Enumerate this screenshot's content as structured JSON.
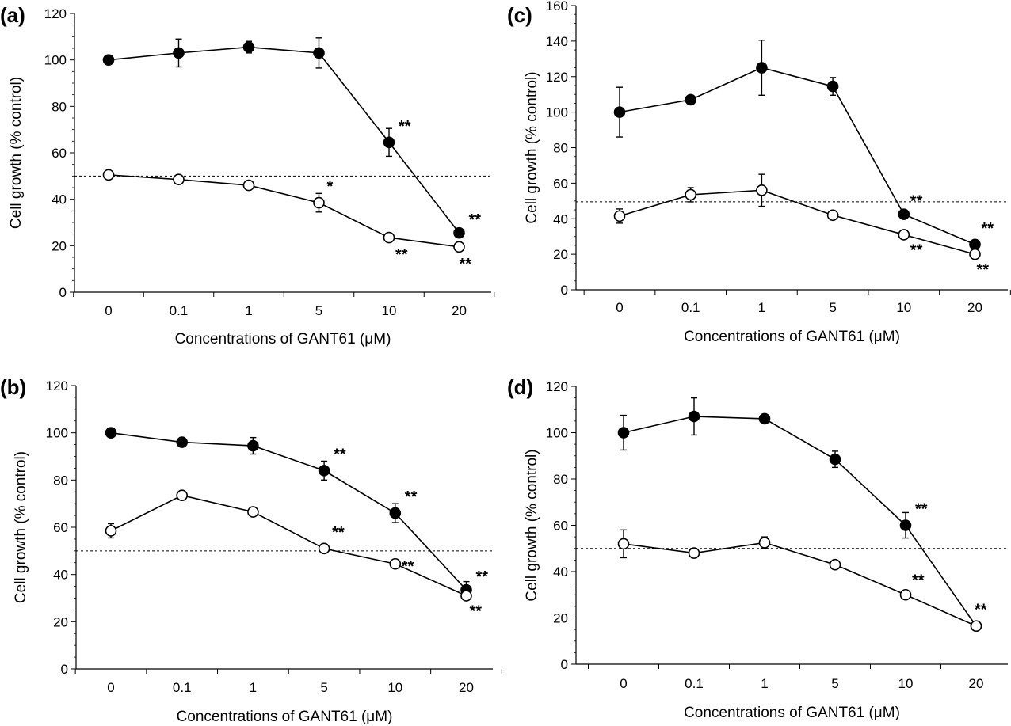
{
  "chart_data": [
    {
      "type": "line",
      "panel_label": "(a)",
      "categories": [
        "0",
        "0.1",
        "1",
        "5",
        "10",
        "20"
      ],
      "xlabel": "Concentrations of GANT61 (μM)",
      "ylabel": "Cell growth (% control)",
      "ylim": [
        0,
        120
      ],
      "yticks": [
        "0",
        "20",
        "40",
        "60",
        "80",
        "100",
        "120"
      ],
      "reference_line": 50,
      "series": [
        {
          "marker": "filled",
          "values": [
            100,
            103,
            105.5,
            103,
            64.5,
            25.5
          ],
          "errors": [
            0,
            6,
            2.5,
            6.5,
            6,
            0
          ],
          "sig": [
            "",
            "",
            "",
            "",
            "**",
            "**"
          ]
        },
        {
          "marker": "open",
          "values": [
            50.5,
            48.5,
            46,
            38.5,
            23.5,
            19.5
          ],
          "errors": [
            0,
            0,
            0,
            4,
            0,
            0
          ],
          "sig": [
            "",
            "",
            "",
            "*",
            "**",
            "**"
          ]
        }
      ]
    },
    {
      "type": "line",
      "panel_label": "(b)",
      "categories": [
        "0",
        "0.1",
        "1",
        "5",
        "10",
        "20"
      ],
      "xlabel": "Concentrations of GANT61 (μM)",
      "ylabel": "Cell growth (% control)",
      "ylim": [
        0,
        120
      ],
      "yticks": [
        "0",
        "20",
        "40",
        "60",
        "80",
        "100",
        "120"
      ],
      "reference_line": 50,
      "series": [
        {
          "marker": "filled",
          "values": [
            100,
            96,
            94.5,
            84,
            66,
            33.5
          ],
          "errors": [
            0,
            0,
            3.5,
            4,
            4,
            3.5
          ],
          "sig": [
            "",
            "",
            "",
            "**",
            "**",
            "**"
          ]
        },
        {
          "marker": "open",
          "values": [
            58.5,
            73.5,
            66.5,
            51,
            44.5,
            31
          ],
          "errors": [
            3,
            0,
            0,
            0,
            0,
            0
          ],
          "sig": [
            "",
            "",
            "",
            "**",
            "**",
            "**"
          ]
        }
      ]
    },
    {
      "type": "line",
      "panel_label": "(c)",
      "categories": [
        "0",
        "0.1",
        "1",
        "5",
        "10",
        "20"
      ],
      "xlabel": "Concentrations of GANT61 (μM)",
      "ylabel": "Cell growth (% control)",
      "ylim": [
        0,
        160
      ],
      "yticks": [
        "0",
        "20",
        "40",
        "60",
        "80",
        "100",
        "120",
        "140",
        "160"
      ],
      "reference_line": 49.5,
      "series": [
        {
          "marker": "filled",
          "values": [
            100,
            107,
            125,
            114.5,
            42.5,
            25.5
          ],
          "errors": [
            14,
            0,
            15.5,
            5,
            0,
            0
          ],
          "sig": [
            "",
            "",
            "",
            "",
            "**",
            "**"
          ]
        },
        {
          "marker": "open",
          "values": [
            41.5,
            53.5,
            56,
            42,
            31,
            20
          ],
          "errors": [
            4,
            4,
            9,
            0,
            0,
            0
          ],
          "sig": [
            "",
            "",
            "",
            "",
            "**",
            "**"
          ]
        }
      ]
    },
    {
      "type": "line",
      "panel_label": "(d)",
      "categories": [
        "0",
        "0.1",
        "1",
        "5",
        "10",
        "20"
      ],
      "xlabel": "Concentrations of GANT61 (μM)",
      "ylabel": "Cell growth (% control)",
      "ylim": [
        0,
        120
      ],
      "yticks": [
        "0",
        "20",
        "40",
        "60",
        "80",
        "100",
        "120"
      ],
      "reference_line": 50,
      "series": [
        {
          "marker": "filled",
          "values": [
            100,
            107,
            106,
            88.5,
            60,
            16.5
          ],
          "errors": [
            7.5,
            8,
            0,
            3.5,
            5.5,
            0
          ],
          "sig": [
            "",
            "",
            "",
            "",
            "**",
            "**"
          ]
        },
        {
          "marker": "open",
          "values": [
            52,
            48,
            52.5,
            43,
            30,
            16.5
          ],
          "errors": [
            6,
            2,
            2.5,
            0,
            0,
            0
          ],
          "sig": [
            "",
            "",
            "",
            "",
            "**",
            ""
          ]
        }
      ]
    }
  ]
}
